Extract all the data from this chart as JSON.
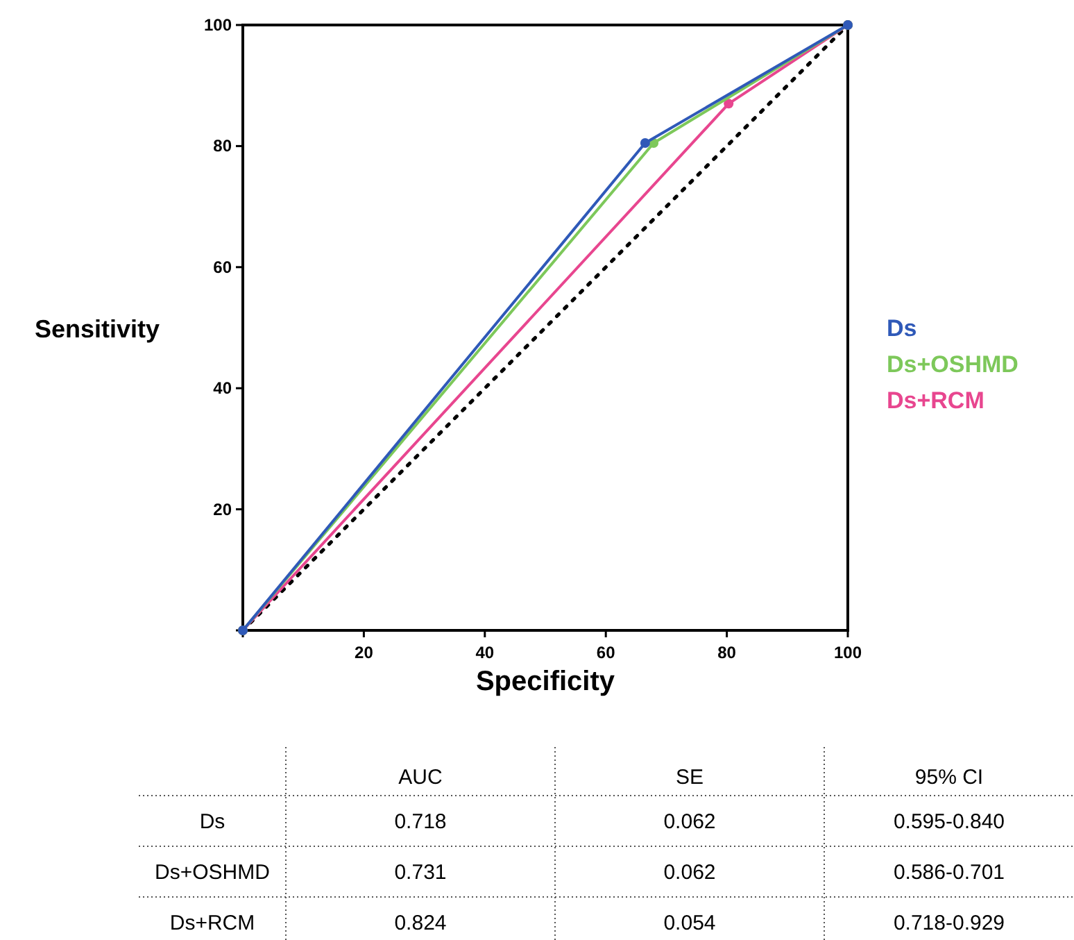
{
  "chart_data": [
    {
      "type": "line",
      "xlabel": "Specificity",
      "ylabel": "Sensitivity",
      "xlim": [
        0,
        100
      ],
      "ylim": [
        0,
        100
      ],
      "xticks": [
        {
          "value": 0,
          "label": null
        },
        20,
        40,
        60,
        80,
        100
      ],
      "yticks": [
        {
          "value": 0,
          "label": null
        },
        20,
        40,
        60,
        80,
        100
      ],
      "legend": "right",
      "grid": false,
      "series": [
        {
          "x": [
            0,
            100
          ],
          "values": [
            0,
            100
          ],
          "color": "#000000",
          "line_style": "dotted",
          "marker": "none"
        },
        {
          "name": "Ds+RCM",
          "x": [
            0,
            80.3,
            100
          ],
          "values": [
            0,
            87,
            100
          ],
          "color": "#e8468f",
          "line_style": "solid",
          "marker": "circle"
        },
        {
          "name": "Ds+OSHMD",
          "x": [
            0,
            67.9,
            100
          ],
          "values": [
            0,
            80.5,
            100
          ],
          "color": "#7dc85a",
          "line_style": "solid",
          "marker": "circle"
        },
        {
          "name": "Ds",
          "x": [
            0,
            66.5,
            100
          ],
          "values": [
            0,
            80.5,
            100
          ],
          "color": "#2f59b8",
          "line_style": "solid",
          "marker": "circle"
        }
      ]
    },
    {
      "type": "other",
      "annotations": [
        "AUC",
        "SE",
        "95% CI",
        "Ds",
        "0.718",
        "0.062",
        "0.595-0.840",
        "Ds+OSHMD",
        "0.731",
        "0.062",
        "0.586-0.701",
        "Ds+RCM",
        "0.824",
        "0.054",
        "0.718-0.929"
      ]
    }
  ]
}
